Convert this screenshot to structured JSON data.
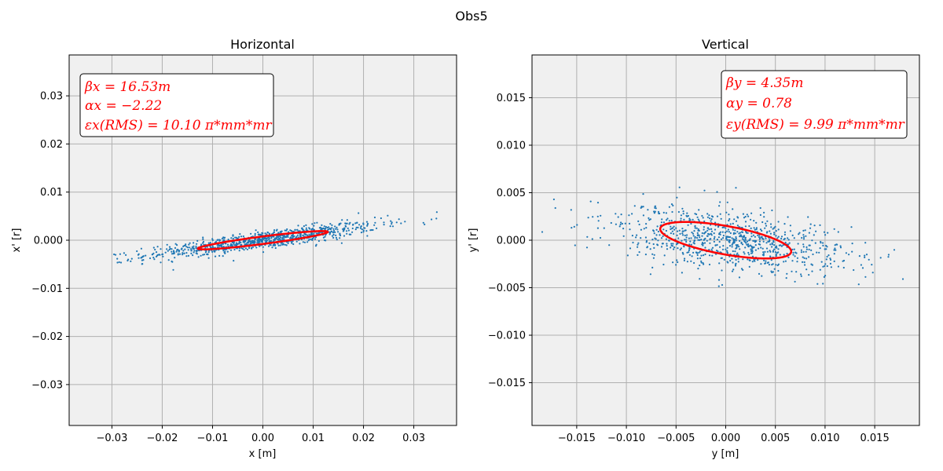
{
  "figure": {
    "suptitle": "Obs5"
  },
  "chart_data": [
    {
      "type": "scatter",
      "title": "Horizontal",
      "xlabel": "x [m]",
      "ylabel": "x' [r]",
      "xlim": [
        -0.0385,
        0.0385
      ],
      "ylim": [
        -0.0385,
        0.0385
      ],
      "xticks": [
        -0.03,
        -0.02,
        -0.01,
        0.0,
        0.01,
        0.02,
        0.03
      ],
      "yticks": [
        -0.03,
        -0.02,
        -0.01,
        0.0,
        0.01,
        0.02,
        0.03
      ],
      "xtick_labels": [
        "−0.03",
        "−0.02",
        "−0.01",
        "0.00",
        "0.01",
        "0.02",
        "0.03"
      ],
      "ytick_labels": [
        "−0.03",
        "−0.02",
        "−0.01",
        "0.000",
        "0.01",
        "0.02",
        "0.03"
      ],
      "grid": true,
      "background": "#f0f0f0",
      "point_color": "#1f77b4",
      "ellipse_color": "#ff0000",
      "annotation_position": "top-left",
      "annotation": {
        "beta": "βx = 16.53m",
        "alpha": "αx = −2.22",
        "emittance": "εx(RMS) = 10.10 π*mm*mr"
      },
      "twiss": {
        "beta": 16.53,
        "alpha": -2.22,
        "emittance": 1.01e-05
      },
      "distribution": {
        "x_sigma": 0.0115,
        "slope": 0.134,
        "residual_sigma": 0.0009,
        "count": 900
      }
    },
    {
      "type": "scatter",
      "title": "Vertical",
      "xlabel": "y [m]",
      "ylabel": "y' [r]",
      "xlim": [
        -0.0195,
        0.0195
      ],
      "ylim": [
        -0.0195,
        0.0195
      ],
      "xticks": [
        -0.015,
        -0.01,
        -0.005,
        0.0,
        0.005,
        0.01,
        0.015
      ],
      "yticks": [
        -0.015,
        -0.01,
        -0.005,
        0.0,
        0.005,
        0.01,
        0.015
      ],
      "xtick_labels": [
        "−0.015",
        "−0.010",
        "−0.005",
        "0.000",
        "0.005",
        "0.010",
        "0.015"
      ],
      "ytick_labels": [
        "−0.015",
        "−0.010",
        "−0.005",
        "0.000",
        "0.005",
        "0.010",
        "0.015"
      ],
      "grid": true,
      "background": "#f0f0f0",
      "point_color": "#1f77b4",
      "ellipse_color": "#ff0000",
      "annotation_position": "top-right",
      "annotation": {
        "beta": "βy = 4.35m",
        "alpha": "αy = 0.78",
        "emittance": "εy(RMS) = 9.99 π*mm*mr"
      },
      "twiss": {
        "beta": 4.35,
        "alpha": 0.78,
        "emittance": 9.99e-06
      },
      "distribution": {
        "x_sigma": 0.0062,
        "slope": -0.12,
        "residual_sigma": 0.0016,
        "count": 900
      }
    }
  ]
}
